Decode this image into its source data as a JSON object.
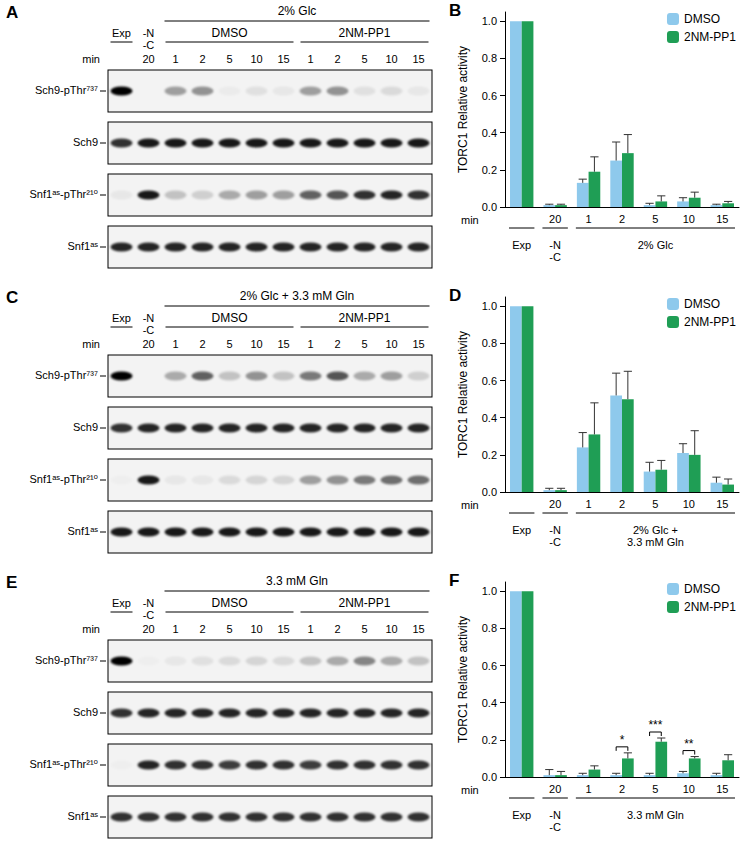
{
  "chart_data": [
    {
      "type": "bar",
      "label": "B",
      "categories": [
        null,
        "20",
        "1",
        "2",
        "5",
        "10",
        "15"
      ],
      "x_label": "min",
      "groups": [
        {
          "label": "Exp",
          "start": 0,
          "end": 0
        },
        {
          "label": "-N\n-C",
          "start": 1,
          "end": 1
        },
        {
          "label": "2% Glc",
          "start": 2,
          "end": 6
        }
      ],
      "y_label": "TORC1 Relative activity",
      "ylim": [
        0,
        1.05
      ],
      "yticks": [
        {
          "value": 0,
          "label": "0.0"
        },
        {
          "value": 0.2,
          "label": "0.2"
        },
        {
          "value": 0.4,
          "label": "0.4"
        },
        {
          "value": 0.6,
          "label": "0.6"
        },
        {
          "value": 0.8,
          "label": "0.8"
        },
        {
          "value": 1,
          "label": "1.0"
        }
      ],
      "grid": false,
      "legend": "upper right",
      "series": [
        {
          "name": "DMSO",
          "color": "#8ec9ec",
          "values": [
            1.0,
            0.01,
            0.13,
            0.25,
            0.01,
            0.03,
            0.01
          ],
          "errors": [
            0,
            0.005,
            0.02,
            0.1,
            0.01,
            0.02,
            0.005
          ]
        },
        {
          "name": "2NM-PP1",
          "color": "#1f9e55",
          "values": [
            1.0,
            0.01,
            0.19,
            0.29,
            0.03,
            0.05,
            0.02
          ],
          "errors": [
            0,
            0.005,
            0.08,
            0.1,
            0.03,
            0.03,
            0.01
          ]
        }
      ],
      "annotations": []
    },
    {
      "type": "bar",
      "label": "D",
      "categories": [
        null,
        "20",
        "1",
        "2",
        "5",
        "10",
        "15"
      ],
      "x_label": "min",
      "groups": [
        {
          "label": "Exp",
          "start": 0,
          "end": 0
        },
        {
          "label": "-N\n-C",
          "start": 1,
          "end": 1
        },
        {
          "label": "2% Glc +\n3.3 mM Gln",
          "start": 2,
          "end": 6
        }
      ],
      "y_label": "TORC1 Relative activity",
      "ylim": [
        0,
        1.05
      ],
      "yticks": [
        {
          "value": 0,
          "label": "0.0"
        },
        {
          "value": 0.2,
          "label": "0.2"
        },
        {
          "value": 0.4,
          "label": "0.4"
        },
        {
          "value": 0.6,
          "label": "0.6"
        },
        {
          "value": 0.8,
          "label": "0.8"
        },
        {
          "value": 1,
          "label": "1.0"
        }
      ],
      "grid": false,
      "legend": "upper right",
      "series": [
        {
          "name": "DMSO",
          "color": "#8ec9ec",
          "values": [
            1.0,
            0.01,
            0.24,
            0.52,
            0.11,
            0.21,
            0.05
          ],
          "errors": [
            0,
            0.01,
            0.08,
            0.12,
            0.05,
            0.05,
            0.03
          ]
        },
        {
          "name": "2NM-PP1",
          "color": "#1f9e55",
          "values": [
            1.0,
            0.01,
            0.31,
            0.5,
            0.12,
            0.2,
            0.04
          ],
          "errors": [
            0,
            0.01,
            0.17,
            0.15,
            0.05,
            0.13,
            0.03
          ]
        }
      ],
      "annotations": []
    },
    {
      "type": "bar",
      "label": "F",
      "categories": [
        null,
        "20",
        "1",
        "2",
        "5",
        "10",
        "15"
      ],
      "x_label": "min",
      "groups": [
        {
          "label": "Exp",
          "start": 0,
          "end": 0
        },
        {
          "label": "-N\n-C",
          "start": 1,
          "end": 1
        },
        {
          "label": "3.3 mM Gln",
          "start": 2,
          "end": 6
        }
      ],
      "y_label": "TORC1 Relative activity",
      "ylim": [
        0,
        1.05
      ],
      "yticks": [
        {
          "value": 0,
          "label": "0.0"
        },
        {
          "value": 0.2,
          "label": "0.2"
        },
        {
          "value": 0.4,
          "label": "0.4"
        },
        {
          "value": 0.6,
          "label": "0.6"
        },
        {
          "value": 0.8,
          "label": "0.8"
        },
        {
          "value": 1,
          "label": "1.0"
        }
      ],
      "grid": false,
      "legend": "upper right",
      "series": [
        {
          "name": "DMSO",
          "color": "#8ec9ec",
          "values": [
            1.0,
            0.01,
            0.01,
            0.01,
            0.01,
            0.02,
            0.01
          ],
          "errors": [
            0,
            0.03,
            0.01,
            0.01,
            0.01,
            0.01,
            0.01
          ]
        },
        {
          "name": "2NM-PP1",
          "color": "#1f9e55",
          "values": [
            1.0,
            0.01,
            0.04,
            0.1,
            0.19,
            0.1,
            0.09
          ],
          "errors": [
            0,
            0.02,
            0.02,
            0.03,
            0.02,
            0.01,
            0.03
          ]
        }
      ],
      "annotations": [
        {
          "index": 3,
          "text": "*"
        },
        {
          "index": 4,
          "text": "***"
        },
        {
          "index": 5,
          "text": "**"
        }
      ]
    }
  ],
  "blots": [
    {
      "label": "A",
      "title": "2% Glc",
      "conditions": [
        {
          "label": "Exp",
          "start": 0,
          "end": 0
        },
        {
          "label": "-N\n-C",
          "start": 1,
          "end": 1
        }
      ],
      "treatments": [
        {
          "label": "DMSO",
          "start": 2,
          "end": 6
        },
        {
          "label": "2NM-PP1",
          "start": 7,
          "end": 11
        }
      ],
      "time_label": "min",
      "times": [
        null,
        "20",
        "1",
        "2",
        "5",
        "10",
        "15",
        "1",
        "2",
        "5",
        "10",
        "15"
      ],
      "rows": [
        {
          "label": "Sch9-pThr⁷³⁷",
          "intensity": [
            1.0,
            0.0,
            0.35,
            0.4,
            0.03,
            0.08,
            0.05,
            0.35,
            0.4,
            0.08,
            0.1,
            0.05
          ]
        },
        {
          "label": "Sch9",
          "intensity": [
            0.8,
            0.9,
            0.9,
            0.9,
            0.9,
            0.9,
            0.9,
            0.9,
            0.9,
            0.9,
            0.9,
            0.9
          ]
        },
        {
          "label": "Snf1ᵃˢ-pThr²¹⁰",
          "intensity": [
            0.05,
            0.9,
            0.2,
            0.15,
            0.3,
            0.35,
            0.35,
            0.6,
            0.65,
            0.8,
            0.85,
            0.8
          ]
        },
        {
          "label": "Snf1ᵃˢ",
          "intensity": [
            0.85,
            0.85,
            0.85,
            0.85,
            0.85,
            0.85,
            0.85,
            0.85,
            0.85,
            0.85,
            0.85,
            0.85
          ]
        }
      ]
    },
    {
      "label": "C",
      "title": "2% Glc + 3.3 mM Gln",
      "conditions": [
        {
          "label": "Exp",
          "start": 0,
          "end": 0
        },
        {
          "label": "-N\n-C",
          "start": 1,
          "end": 1
        }
      ],
      "treatments": [
        {
          "label": "DMSO",
          "start": 2,
          "end": 6
        },
        {
          "label": "2NM-PP1",
          "start": 7,
          "end": 11
        }
      ],
      "time_label": "min",
      "times": [
        null,
        "20",
        "1",
        "2",
        "5",
        "10",
        "15",
        "1",
        "2",
        "5",
        "10",
        "15"
      ],
      "rows": [
        {
          "label": "Sch9-pThr⁷³⁷",
          "intensity": [
            1.0,
            0.0,
            0.3,
            0.6,
            0.2,
            0.4,
            0.2,
            0.5,
            0.65,
            0.3,
            0.35,
            0.15
          ]
        },
        {
          "label": "Sch9",
          "intensity": [
            0.8,
            0.85,
            0.85,
            0.85,
            0.85,
            0.85,
            0.85,
            0.85,
            0.85,
            0.85,
            0.85,
            0.85
          ]
        },
        {
          "label": "Snf1ᵃˢ-pThr²¹⁰",
          "intensity": [
            0.02,
            0.9,
            0.05,
            0.05,
            0.1,
            0.12,
            0.12,
            0.35,
            0.4,
            0.5,
            0.55,
            0.55
          ]
        },
        {
          "label": "Snf1ᵃˢ",
          "intensity": [
            0.9,
            0.9,
            0.9,
            0.9,
            0.9,
            0.9,
            0.9,
            0.9,
            0.9,
            0.9,
            0.9,
            0.9
          ]
        }
      ]
    },
    {
      "label": "E",
      "title": "3.3 mM Gln",
      "conditions": [
        {
          "label": "Exp",
          "start": 0,
          "end": 0
        },
        {
          "label": "-N\n-C",
          "start": 1,
          "end": 1
        }
      ],
      "treatments": [
        {
          "label": "DMSO",
          "start": 2,
          "end": 6
        },
        {
          "label": "2NM-PP1",
          "start": 7,
          "end": 11
        }
      ],
      "time_label": "min",
      "times": [
        null,
        "20",
        "1",
        "2",
        "5",
        "10",
        "15",
        "1",
        "2",
        "5",
        "10",
        "15"
      ],
      "rows": [
        {
          "label": "Sch9-pThr⁷³⁷",
          "intensity": [
            1.0,
            0.02,
            0.05,
            0.08,
            0.1,
            0.12,
            0.1,
            0.2,
            0.3,
            0.45,
            0.3,
            0.2
          ]
        },
        {
          "label": "Sch9",
          "intensity": [
            0.8,
            0.85,
            0.85,
            0.85,
            0.85,
            0.85,
            0.85,
            0.85,
            0.85,
            0.85,
            0.85,
            0.85
          ]
        },
        {
          "label": "Snf1ᵃˢ-pThr²¹⁰",
          "intensity": [
            0.02,
            0.85,
            0.8,
            0.8,
            0.75,
            0.8,
            0.8,
            0.75,
            0.8,
            0.8,
            0.8,
            0.8
          ]
        },
        {
          "label": "Snf1ᵃˢ",
          "intensity": [
            0.8,
            0.8,
            0.8,
            0.8,
            0.8,
            0.8,
            0.8,
            0.8,
            0.8,
            0.8,
            0.8,
            0.8
          ]
        }
      ]
    }
  ]
}
